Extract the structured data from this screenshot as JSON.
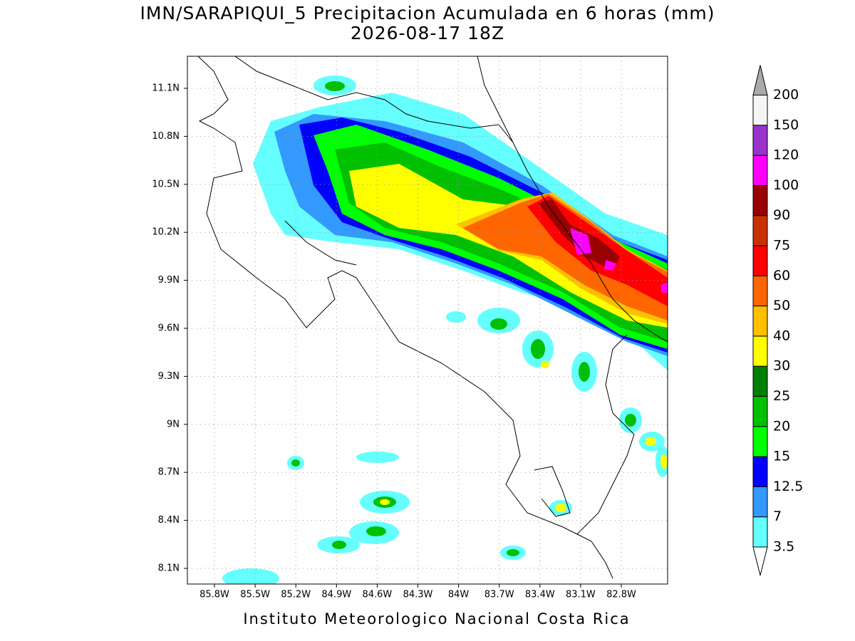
{
  "header": {
    "title": "IMN/SARAPIQUI_5 Precipitacion Acumulada en 6 horas (mm)",
    "subtitle": "2026-08-17 18Z"
  },
  "map": {
    "lat_labels": [
      "11.1N",
      "10.8N",
      "10.5N",
      "10.2N",
      "9.9N",
      "9.6N",
      "9.3N",
      "9N",
      "8.7N",
      "8.4N",
      "8.1N"
    ],
    "lon_labels": [
      "85.8W",
      "85.5W",
      "85.2W",
      "84.9W",
      "84.6W",
      "84.3W",
      "84W",
      "83.7W",
      "83.4W",
      "83.1W",
      "82.8W"
    ]
  },
  "colorbar": {
    "labels": [
      "3.5",
      "7",
      "12.5",
      "15",
      "20",
      "25",
      "30",
      "40",
      "50",
      "60",
      "75",
      "90",
      "100",
      "120",
      "150",
      "200"
    ],
    "colors": [
      "#ffffff",
      "#66ffff",
      "#3399ff",
      "#0000ff",
      "#00ff00",
      "#00c000",
      "#008000",
      "#ffff00",
      "#ffc000",
      "#ff6600",
      "#ff0000",
      "#c83200",
      "#990000",
      "#ff00ff",
      "#9933cc",
      "#f5f5f5",
      "#aaaaaa"
    ]
  },
  "footer": {
    "text": "Instituto Meteorologico Nacional Costa Rica"
  }
}
